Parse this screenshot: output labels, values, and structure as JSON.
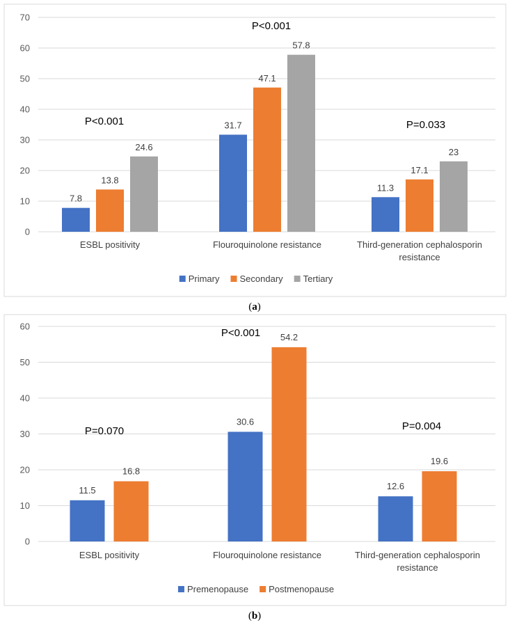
{
  "chart_data": [
    {
      "type": "bar",
      "caption": {
        "open": "(",
        "letter": "a",
        "close": ")"
      },
      "categories": [
        [
          "ESBL positivity"
        ],
        [
          "Flouroquinolone resistance"
        ],
        [
          "Third-generation cephalosporin",
          "resistance"
        ]
      ],
      "series": [
        {
          "name": "Primary",
          "color": "#4472C4",
          "values": [
            7.8,
            31.7,
            11.3
          ],
          "labels": [
            "7.8",
            "31.7",
            "11.3"
          ]
        },
        {
          "name": "Secondary",
          "color": "#ED7D31",
          "values": [
            13.8,
            47.1,
            17.1
          ],
          "labels": [
            "13.8",
            "47.1",
            "17.1"
          ]
        },
        {
          "name": "Tertiary",
          "color": "#A5A5A5",
          "values": [
            24.6,
            57.8,
            23
          ],
          "labels": [
            "24.6",
            "57.8",
            "23"
          ]
        }
      ],
      "annotations": [
        "P<0.001",
        "P<0.001",
        "P=0.033"
      ],
      "ylim": [
        0,
        70
      ],
      "yticks": [
        "0",
        "10",
        "20",
        "30",
        "40",
        "50",
        "60",
        "70"
      ],
      "grid": true,
      "legend_position": "bottom"
    },
    {
      "type": "bar",
      "caption": {
        "open": "(",
        "letter": "b",
        "close": ")"
      },
      "categories": [
        [
          "ESBL positivity"
        ],
        [
          "Flouroquinolone resistance"
        ],
        [
          "Third-generation cephalosporin",
          "resistance"
        ]
      ],
      "series": [
        {
          "name": "Premenopause",
          "color": "#4472C4",
          "values": [
            11.5,
            30.6,
            12.6
          ],
          "labels": [
            "11.5",
            "30.6",
            "12.6"
          ]
        },
        {
          "name": "Postmenopause",
          "color": "#ED7D31",
          "values": [
            16.8,
            54.2,
            19.6
          ],
          "labels": [
            "16.8",
            "54.2",
            "19.6"
          ]
        }
      ],
      "annotations": [
        "P=0.070",
        "P<0.001",
        "P=0.004"
      ],
      "ylim": [
        0,
        60
      ],
      "yticks": [
        "0",
        "10",
        "20",
        "30",
        "40",
        "50",
        "60"
      ],
      "grid": true,
      "legend_position": "bottom"
    }
  ]
}
